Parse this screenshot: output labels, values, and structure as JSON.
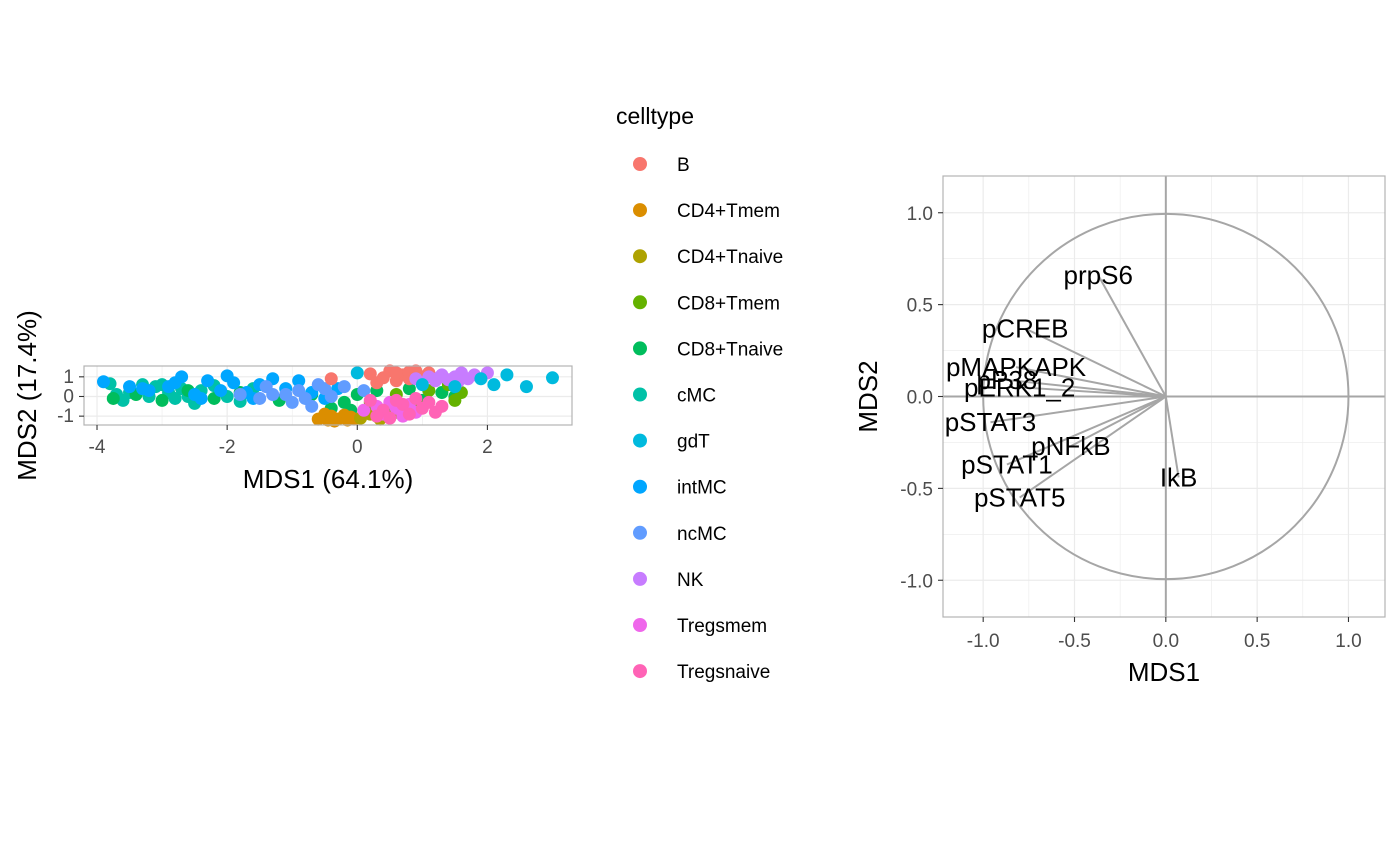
{
  "colors": {
    "B": "#F8766D",
    "CD4+Tmem": "#DB8E00",
    "CD4+Tnaive": "#AEA200",
    "CD8+Tmem": "#64B200",
    "CD8+Tnaive": "#00BD5C",
    "cMC": "#00C1A7",
    "gdT": "#00BADE",
    "intMC": "#00A6FF",
    "ncMC": "#619CFF",
    "NK": "#C77CFF",
    "Tregsmem": "#EF67EB",
    "Tregsnaive": "#FF63B6",
    "grid": "#ebebeb",
    "panel_border": "#b3b3b3",
    "loading": "#a6a6a6"
  },
  "chart_data": [
    {
      "type": "scatter",
      "xlabel": "MDS1 (64.1%)",
      "ylabel": "MDS2 (17.4%)",
      "xlim": [
        -4.2,
        3.3
      ],
      "ylim": [
        -1.45,
        1.55
      ],
      "x_ticks": [
        -4,
        -2,
        0,
        2
      ],
      "x_tick_labels": [
        "-4",
        "-2",
        "0",
        "2"
      ],
      "y_ticks": [
        -1,
        0,
        1
      ],
      "y_tick_labels": [
        "-1",
        "0",
        "1"
      ],
      "grid": true,
      "legend": {
        "title": "celltype",
        "position": "right",
        "entries": [
          "B",
          "CD4+Tmem",
          "CD4+Tnaive",
          "CD8+Tmem",
          "CD8+Tnaive",
          "cMC",
          "gdT",
          "intMC",
          "ncMC",
          "NK",
          "Tregsmem",
          "Tregsnaive"
        ]
      },
      "series": [
        {
          "name": "cMC",
          "points": [
            [
              -3.8,
              0.65
            ],
            [
              -3.7,
              0.1
            ],
            [
              -3.5,
              0.2
            ],
            [
              -3.3,
              0.6
            ],
            [
              -3.2,
              0.0
            ],
            [
              -3.0,
              0.6
            ],
            [
              -2.9,
              0.2
            ],
            [
              -2.8,
              -0.1
            ],
            [
              -2.6,
              0.0
            ],
            [
              -2.5,
              -0.35
            ],
            [
              -2.4,
              0.3
            ],
            [
              -2.2,
              0.55
            ],
            [
              -2.0,
              0.0
            ],
            [
              -1.8,
              -0.25
            ],
            [
              -1.6,
              0.4
            ],
            [
              -3.6,
              -0.2
            ],
            [
              -3.1,
              0.5
            ],
            [
              -2.7,
              0.4
            ]
          ]
        },
        {
          "name": "CD8+Tnaive",
          "points": [
            [
              -3.75,
              -0.1
            ],
            [
              -3.4,
              0.1
            ],
            [
              -3.0,
              -0.2
            ],
            [
              -2.6,
              0.3
            ],
            [
              -2.2,
              -0.1
            ],
            [
              -1.8,
              0.2
            ],
            [
              -1.2,
              -0.2
            ],
            [
              -0.2,
              -0.3
            ],
            [
              0.0,
              0.1
            ],
            [
              0.3,
              0.3
            ],
            [
              0.5,
              -0.5
            ],
            [
              -0.1,
              -0.7
            ],
            [
              0.8,
              0.4
            ],
            [
              1.0,
              -0.2
            ],
            [
              1.3,
              0.2
            ],
            [
              1.5,
              0.0
            ],
            [
              -0.7,
              0.1
            ],
            [
              -0.4,
              -0.6
            ]
          ]
        },
        {
          "name": "intMC",
          "points": [
            [
              -3.9,
              0.75
            ],
            [
              -3.5,
              0.5
            ],
            [
              -3.2,
              0.3
            ],
            [
              -2.9,
              0.5
            ],
            [
              -2.7,
              1.0
            ],
            [
              -2.5,
              0.1
            ],
            [
              -2.3,
              0.8
            ],
            [
              -2.1,
              0.3
            ],
            [
              -2.0,
              1.05
            ],
            [
              -1.9,
              0.7
            ],
            [
              -1.7,
              0.2
            ],
            [
              -1.5,
              0.6
            ],
            [
              -1.3,
              0.9
            ],
            [
              -1.1,
              0.4
            ],
            [
              -0.9,
              0.8
            ],
            [
              -0.7,
              0.2
            ],
            [
              -0.5,
              -0.1
            ],
            [
              -0.3,
              0.4
            ],
            [
              -1.6,
              -0.1
            ],
            [
              -2.4,
              -0.1
            ],
            [
              -2.8,
              0.7
            ],
            [
              -3.3,
              0.4
            ]
          ]
        },
        {
          "name": "ncMC",
          "points": [
            [
              -1.8,
              0.1
            ],
            [
              -1.5,
              -0.1
            ],
            [
              -1.3,
              0.1
            ],
            [
              -1.0,
              -0.3
            ],
            [
              -0.9,
              0.3
            ],
            [
              -0.7,
              -0.5
            ],
            [
              -0.6,
              0.6
            ],
            [
              -0.4,
              0.0
            ],
            [
              -0.2,
              0.5
            ],
            [
              0.1,
              0.3
            ],
            [
              -1.4,
              0.5
            ],
            [
              -1.1,
              0.1
            ],
            [
              -0.8,
              -0.1
            ],
            [
              -0.5,
              0.4
            ]
          ]
        },
        {
          "name": "B",
          "points": [
            [
              -0.4,
              0.9
            ],
            [
              0.2,
              1.15
            ],
            [
              0.4,
              0.95
            ],
            [
              0.5,
              1.3
            ],
            [
              0.6,
              0.8
            ],
            [
              0.7,
              1.1
            ],
            [
              0.8,
              0.9
            ],
            [
              0.9,
              1.3
            ],
            [
              1.0,
              1.0
            ],
            [
              1.1,
              1.2
            ],
            [
              0.3,
              0.7
            ],
            [
              0.6,
              1.2
            ],
            [
              0.8,
              1.25
            ],
            [
              1.2,
              0.85
            ]
          ]
        },
        {
          "name": "CD4+Tmem",
          "points": [
            [
              -0.6,
              -1.15
            ],
            [
              -0.5,
              -0.9
            ],
            [
              -0.45,
              -1.2
            ],
            [
              -0.4,
              -1.0
            ],
            [
              -0.3,
              -1.15
            ],
            [
              -0.2,
              -0.95
            ],
            [
              -0.15,
              -1.2
            ],
            [
              -0.1,
              -1.05
            ],
            [
              -0.05,
              -1.15
            ],
            [
              -0.35,
              -1.25
            ]
          ]
        },
        {
          "name": "CD4+Tnaive",
          "points": [
            [
              0.05,
              -1.1
            ],
            [
              0.2,
              -0.9
            ],
            [
              0.35,
              -1.15
            ],
            [
              0.5,
              -1.05
            ],
            [
              0.6,
              -0.8
            ],
            [
              0.3,
              -1.0
            ]
          ]
        },
        {
          "name": "CD8+Tmem",
          "points": [
            [
              0.2,
              -0.3
            ],
            [
              0.6,
              0.1
            ],
            [
              0.9,
              -0.2
            ],
            [
              1.1,
              0.3
            ],
            [
              1.4,
              0.6
            ],
            [
              1.6,
              0.2
            ],
            [
              1.5,
              -0.2
            ]
          ]
        },
        {
          "name": "Tregsmem",
          "points": [
            [
              0.1,
              -0.7
            ],
            [
              0.3,
              -0.5
            ],
            [
              0.4,
              -0.9
            ],
            [
              0.6,
              -0.6
            ],
            [
              0.7,
              -1.0
            ],
            [
              0.5,
              -0.3
            ],
            [
              0.8,
              -0.4
            ],
            [
              0.9,
              -0.8
            ]
          ]
        },
        {
          "name": "Tregsnaive",
          "points": [
            [
              0.2,
              -0.2
            ],
            [
              0.4,
              -0.7
            ],
            [
              0.5,
              -1.1
            ],
            [
              0.7,
              -0.4
            ],
            [
              0.8,
              -0.9
            ],
            [
              1.0,
              -0.6
            ],
            [
              1.1,
              -0.3
            ],
            [
              1.2,
              -0.8
            ],
            [
              1.3,
              -0.5
            ],
            [
              0.3,
              -1.0
            ],
            [
              0.6,
              -0.2
            ],
            [
              0.9,
              -0.1
            ]
          ]
        },
        {
          "name": "NK",
          "points": [
            [
              0.9,
              0.9
            ],
            [
              1.0,
              0.7
            ],
            [
              1.1,
              1.0
            ],
            [
              1.2,
              0.8
            ],
            [
              1.3,
              1.1
            ],
            [
              1.4,
              0.85
            ],
            [
              1.5,
              1.0
            ],
            [
              1.6,
              1.2
            ],
            [
              1.7,
              0.9
            ],
            [
              1.8,
              1.1
            ],
            [
              2.0,
              1.2
            ],
            [
              1.25,
              0.95
            ],
            [
              1.55,
              0.75
            ]
          ]
        },
        {
          "name": "gdT",
          "points": [
            [
              0.0,
              1.2
            ],
            [
              1.0,
              0.6
            ],
            [
              1.5,
              0.5
            ],
            [
              1.9,
              0.9
            ],
            [
              2.3,
              1.1
            ],
            [
              2.6,
              0.5
            ],
            [
              3.0,
              0.95
            ],
            [
              2.1,
              0.6
            ]
          ]
        }
      ]
    },
    {
      "type": "scatter",
      "xlabel": "MDS1",
      "ylabel": "MDS2",
      "xlim": [
        -1.22,
        1.2
      ],
      "ylim": [
        -1.2,
        1.2
      ],
      "x_ticks": [
        -1,
        -0.5,
        0,
        0.5,
        1
      ],
      "x_tick_labels": [
        "-1.0",
        "-0.5",
        "0.0",
        "0.5",
        "1.0"
      ],
      "y_ticks": [
        -1,
        -0.5,
        0,
        0.5,
        1
      ],
      "y_tick_labels": [
        "-1.0",
        "-0.5",
        "0.0",
        "0.5",
        "1.0"
      ],
      "grid": true,
      "unit_circle": true,
      "loadings": [
        {
          "label": "prpS6",
          "x": -0.37,
          "y": 0.66
        },
        {
          "label": "pCREB",
          "x": -0.77,
          "y": 0.37
        },
        {
          "label": "pMAPKAPK",
          "x": -0.82,
          "y": 0.16
        },
        {
          "label": "pP38",
          "x": -0.87,
          "y": 0.09
        },
        {
          "label": "pERK1_2",
          "x": -0.8,
          "y": 0.05
        },
        {
          "label": "pSTAT3",
          "x": -0.96,
          "y": -0.14
        },
        {
          "label": "pNFkB",
          "x": -0.52,
          "y": -0.27
        },
        {
          "label": "pSTAT1",
          "x": -0.87,
          "y": -0.37
        },
        {
          "label": "pSTAT5",
          "x": -0.8,
          "y": -0.55
        },
        {
          "label": "IkB",
          "x": 0.07,
          "y": -0.44
        }
      ]
    }
  ]
}
